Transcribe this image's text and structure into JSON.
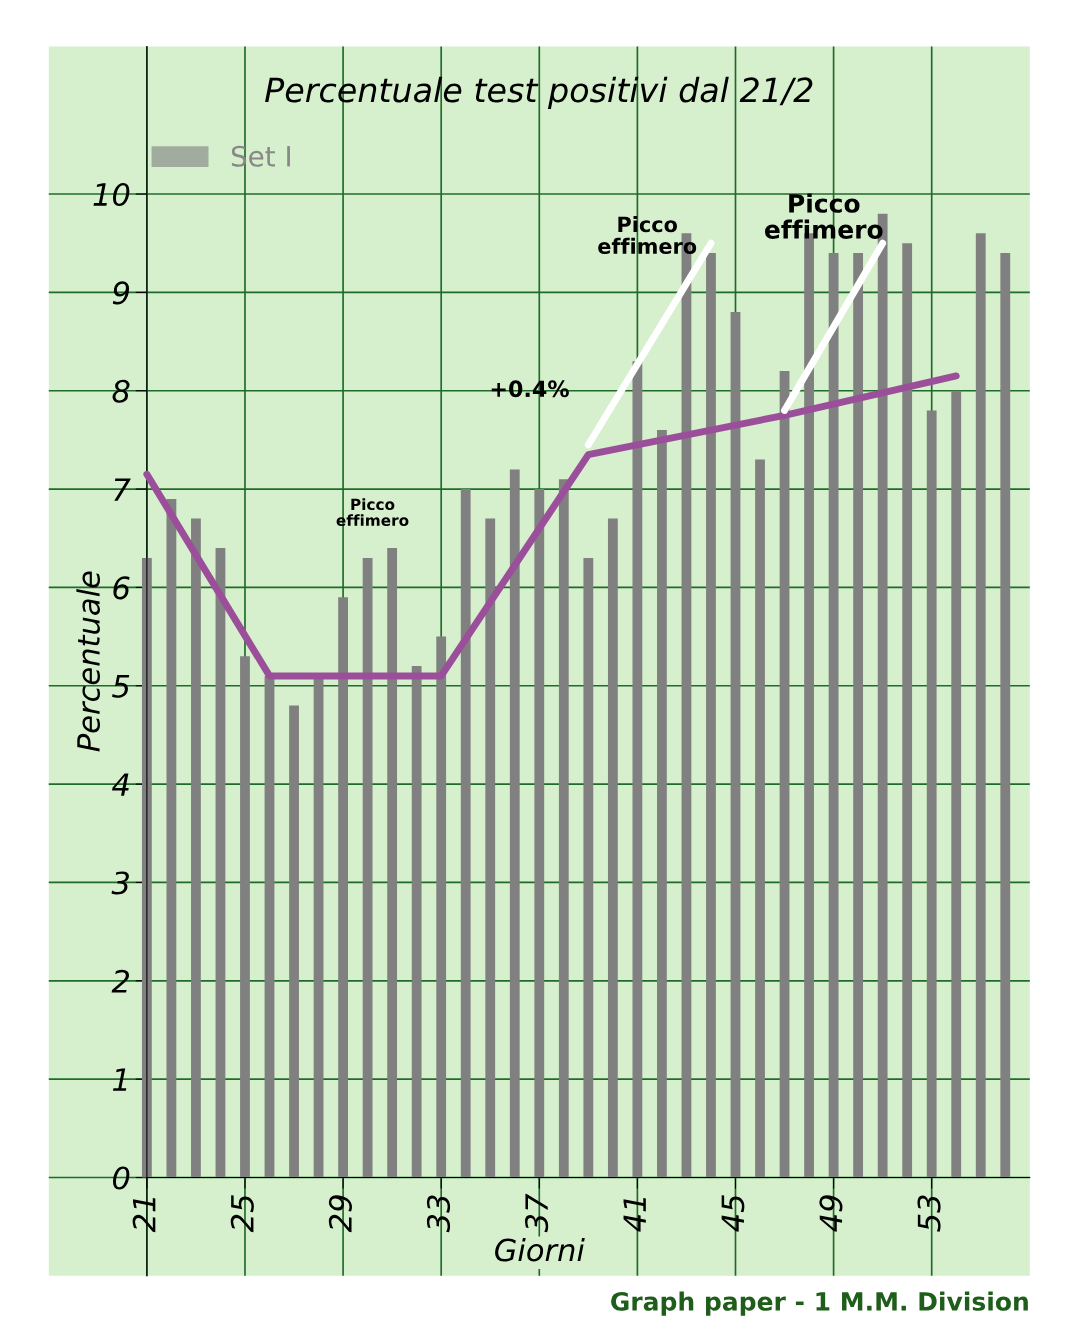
{
  "chart_data": {
    "type": "bar",
    "title": "Percentuale test positivi dal 21/2",
    "xlabel": "Giorni",
    "ylabel": "Percentuale",
    "x": [
      21,
      22,
      23,
      24,
      25,
      26,
      27,
      28,
      29,
      30,
      31,
      32,
      33,
      34,
      35,
      36,
      37,
      38,
      39,
      40,
      41,
      42,
      43,
      44,
      45,
      46,
      47,
      48,
      49,
      50,
      51,
      52,
      53,
      54,
      55,
      56
    ],
    "series": [
      {
        "name": "Set I",
        "color": "#808080",
        "values": [
          6.3,
          6.9,
          6.7,
          6.4,
          5.3,
          5.1,
          4.8,
          5.1,
          5.9,
          6.3,
          6.4,
          5.2,
          5.5,
          7.0,
          6.7,
          7.2,
          7.0,
          7.1,
          6.3,
          6.7,
          8.3,
          7.6,
          9.6,
          9.4,
          8.8,
          7.3,
          8.2,
          9.6,
          9.4,
          9.4,
          9.8,
          9.5,
          7.8,
          8.0,
          9.6,
          9.4
        ]
      },
      {
        "type": "line",
        "color": "#9b4f9b",
        "x": [
          21,
          26,
          33,
          39,
          47,
          54
        ],
        "values": [
          7.15,
          5.1,
          5.1,
          7.35,
          7.75,
          8.15
        ]
      },
      {
        "type": "line",
        "color": "#ffffff",
        "x": [
          39,
          44
        ],
        "values": [
          7.45,
          9.5
        ]
      },
      {
        "type": "line",
        "color": "#ffffff",
        "x": [
          47,
          51
        ],
        "values": [
          7.8,
          9.5
        ]
      }
    ],
    "xlim": [
      17,
      57
    ],
    "ylim": [
      -1,
      11.5
    ],
    "xticks": [
      21,
      25,
      29,
      33,
      37,
      41,
      45,
      49,
      53
    ],
    "yticks": [
      0,
      1,
      2,
      3,
      4,
      5,
      6,
      7,
      8,
      9,
      10
    ],
    "grid": true,
    "legend": "top left",
    "annotations": [
      "Picco effimero",
      "Picco effimero",
      "Picco effimero",
      "+0.4%",
      "Graph paper - 1 M.M. Division"
    ]
  }
}
